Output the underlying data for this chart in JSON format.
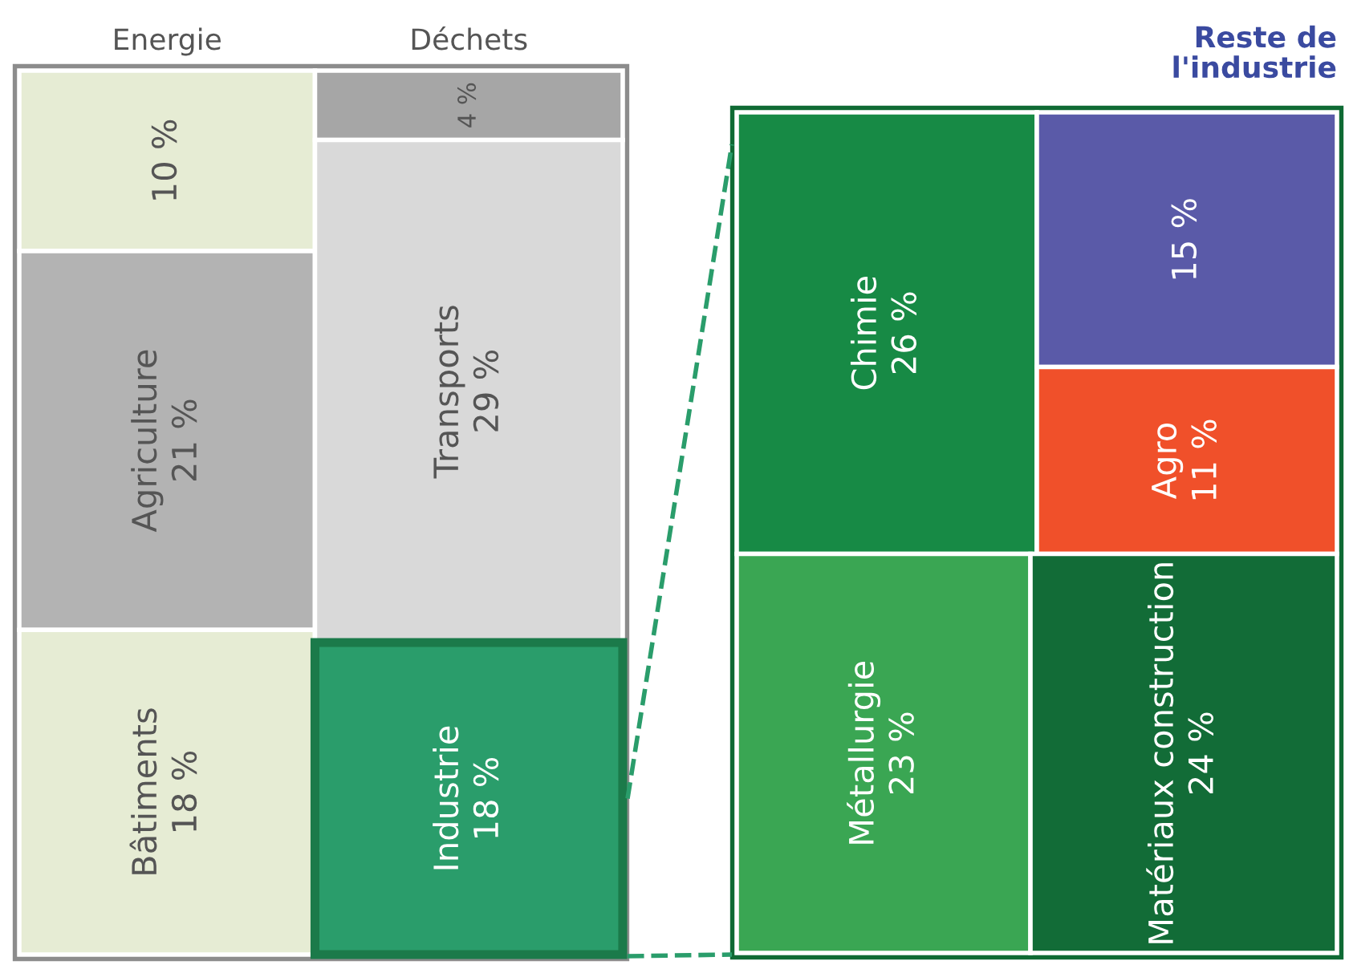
{
  "chart_data": [
    {
      "type": "other",
      "categories": [
        "Energie",
        "Déchets",
        "Agriculture",
        "Transports",
        "Bâtiments",
        "Industrie"
      ],
      "values": [
        10,
        4,
        21,
        29,
        18,
        18
      ],
      "value_labels": [
        "10 %",
        "4 %",
        "21 %",
        "29 %",
        "18 %",
        "18 %"
      ],
      "colors": [
        "#e6ecd4",
        "#a6a6a6",
        "#b3b3b3",
        "#d9d9d9",
        "#e6ecd4",
        "#2a9d6b"
      ]
    },
    {
      "type": "other",
      "categories": [
        "Chimie",
        "Reste de l'industrie",
        "Agro",
        "Métallurgie",
        "Matériaux construction"
      ],
      "values": [
        26,
        15,
        11,
        23,
        24
      ],
      "value_labels": [
        "26 %",
        "15 %",
        "11 %",
        "23 %",
        "24 %"
      ],
      "colors": [
        "#178a45",
        "#5a5aa8",
        "#f0502a",
        "#3aa653",
        "#126c37"
      ]
    }
  ]
}
